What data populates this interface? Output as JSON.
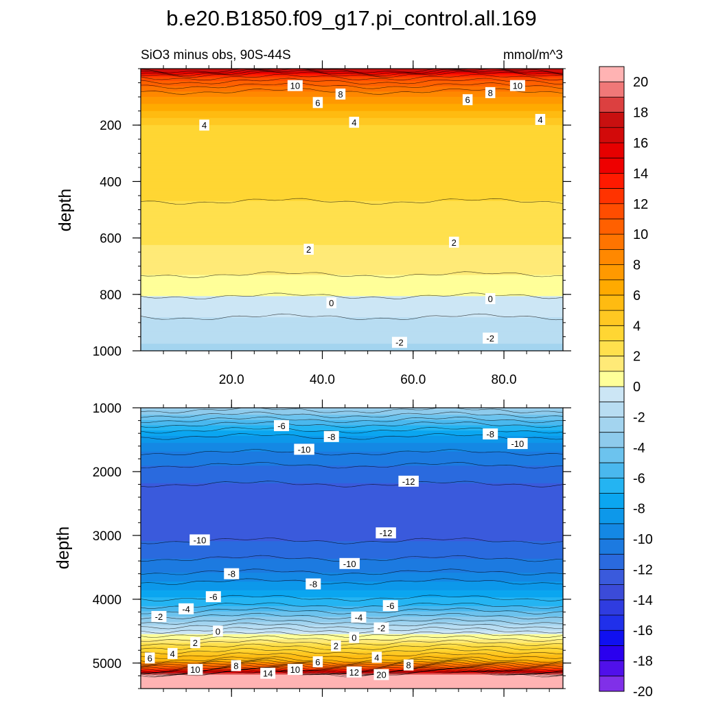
{
  "chart_data": {
    "type": "contour",
    "title": "b.e20.B1850.f09_g17.pi_control.all.169",
    "subtitle_left": "SiO3 minus obs, 90S-44S",
    "subtitle_right": "mmol/m^3",
    "ylabel": "depth",
    "x": {
      "tick_labels": [
        "20.0",
        "40.0",
        "60.0",
        "80.0"
      ],
      "tick_values": [
        20,
        40,
        60,
        80
      ],
      "range": [
        0,
        93
      ]
    },
    "panels": [
      {
        "name": "upper",
        "ylim": [
          0,
          1000
        ],
        "y_tick_labels": [
          "200",
          "400",
          "600",
          "800",
          "1000"
        ],
        "y_tick_values": [
          200,
          400,
          600,
          800,
          1000
        ],
        "field_profile": [
          [
            0,
            18
          ],
          [
            30,
            12
          ],
          [
            60,
            10
          ],
          [
            100,
            8
          ],
          [
            150,
            6
          ],
          [
            200,
            4
          ],
          [
            250,
            3.6
          ],
          [
            350,
            3.4
          ],
          [
            450,
            3.1
          ],
          [
            550,
            2.6
          ],
          [
            650,
            1.8
          ],
          [
            750,
            0.8
          ],
          [
            820,
            -0.2
          ],
          [
            880,
            -1.0
          ],
          [
            950,
            -1.8
          ],
          [
            1000,
            -2.2
          ]
        ],
        "contour_labels": [
          {
            "text": "10",
            "x": 34,
            "y": 60
          },
          {
            "text": "8",
            "x": 44,
            "y": 90
          },
          {
            "text": "6",
            "x": 39,
            "y": 120
          },
          {
            "text": "8",
            "x": 77,
            "y": 85
          },
          {
            "text": "10",
            "x": 83,
            "y": 60
          },
          {
            "text": "6",
            "x": 72,
            "y": 110
          },
          {
            "text": "4",
            "x": 14,
            "y": 200
          },
          {
            "text": "4",
            "x": 47,
            "y": 190
          },
          {
            "text": "4",
            "x": 88,
            "y": 180
          },
          {
            "text": "2",
            "x": 37,
            "y": 640
          },
          {
            "text": "2",
            "x": 69,
            "y": 615
          },
          {
            "text": "0",
            "x": 42,
            "y": 830
          },
          {
            "text": "0",
            "x": 77,
            "y": 815
          },
          {
            "text": "-2",
            "x": 57,
            "y": 970
          },
          {
            "text": "-2",
            "x": 77,
            "y": 955
          }
        ]
      },
      {
        "name": "lower",
        "ylim": [
          1000,
          5400
        ],
        "y_tick_labels": [
          "1000",
          "2000",
          "3000",
          "4000",
          "5000"
        ],
        "y_tick_values": [
          1000,
          2000,
          3000,
          4000,
          5000
        ],
        "field_profile": [
          [
            1000,
            -2.5
          ],
          [
            1300,
            -6.5
          ],
          [
            1600,
            -9.5
          ],
          [
            2000,
            -11.5
          ],
          [
            2500,
            -12.8
          ],
          [
            3000,
            -12.3
          ],
          [
            3500,
            -10.5
          ],
          [
            3800,
            -8.5
          ],
          [
            4100,
            -6
          ],
          [
            4350,
            -3
          ],
          [
            4550,
            0
          ],
          [
            4750,
            3
          ],
          [
            4950,
            6
          ],
          [
            5100,
            12
          ],
          [
            5180,
            20
          ],
          [
            5400,
            21
          ]
        ],
        "contour_labels": [
          {
            "text": "-6",
            "x": 31,
            "y": 1280
          },
          {
            "text": "-8",
            "x": 42,
            "y": 1450
          },
          {
            "text": "-10",
            "x": 36,
            "y": 1650
          },
          {
            "text": "-8",
            "x": 77,
            "y": 1410
          },
          {
            "text": "-10",
            "x": 83,
            "y": 1560
          },
          {
            "text": "-12",
            "x": 59,
            "y": 2150
          },
          {
            "text": "-10",
            "x": 13,
            "y": 3070
          },
          {
            "text": "-12",
            "x": 54,
            "y": 2960
          },
          {
            "text": "-8",
            "x": 20,
            "y": 3600
          },
          {
            "text": "-10",
            "x": 46,
            "y": 3440
          },
          {
            "text": "-8",
            "x": 38,
            "y": 3760
          },
          {
            "text": "-6",
            "x": 16,
            "y": 3960
          },
          {
            "text": "-4",
            "x": 10,
            "y": 4150
          },
          {
            "text": "-2",
            "x": 4,
            "y": 4270
          },
          {
            "text": "-6",
            "x": 55,
            "y": 4100
          },
          {
            "text": "-4",
            "x": 48,
            "y": 4280
          },
          {
            "text": "-2",
            "x": 53,
            "y": 4450
          },
          {
            "text": "0",
            "x": 17,
            "y": 4500
          },
          {
            "text": "0",
            "x": 47,
            "y": 4600
          },
          {
            "text": "2",
            "x": 12,
            "y": 4680
          },
          {
            "text": "2",
            "x": 43,
            "y": 4730
          },
          {
            "text": "4",
            "x": 7,
            "y": 4850
          },
          {
            "text": "4",
            "x": 52,
            "y": 4910
          },
          {
            "text": "6",
            "x": 2,
            "y": 4920
          },
          {
            "text": "6",
            "x": 39,
            "y": 4980
          },
          {
            "text": "8",
            "x": 21,
            "y": 5040
          },
          {
            "text": "8",
            "x": 59,
            "y": 5030
          },
          {
            "text": "10",
            "x": 12,
            "y": 5100
          },
          {
            "text": "10",
            "x": 34,
            "y": 5100
          },
          {
            "text": "12",
            "x": 47,
            "y": 5140
          },
          {
            "text": "14",
            "x": 28,
            "y": 5160
          },
          {
            "text": "20",
            "x": 53,
            "y": 5180
          }
        ]
      }
    ],
    "colorbar": {
      "tick_labels": [
        "20",
        "18",
        "16",
        "14",
        "12",
        "10",
        "8",
        "6",
        "4",
        "2",
        "0",
        "-2",
        "-4",
        "-6",
        "-8",
        "-10",
        "-12",
        "-14",
        "-16",
        "-18",
        "-20"
      ],
      "levels": [
        20,
        19,
        18,
        17,
        16,
        15,
        14,
        13,
        12,
        11,
        10,
        9,
        8,
        7,
        6,
        5,
        4,
        3,
        2,
        1,
        0,
        -1,
        -2,
        -3,
        -4,
        -5,
        -6,
        -7,
        -8,
        -9,
        -10,
        -11,
        -12,
        -13,
        -14,
        -15,
        -16,
        -17,
        -18,
        -19,
        -20
      ],
      "colors": [
        "#ffb3b3",
        "#f07878",
        "#dc4040",
        "#c81010",
        "#d20a0a",
        "#e60000",
        "#ee0000",
        "#ff1a00",
        "#ff3300",
        "#ff4d00",
        "#ff6000",
        "#ff7400",
        "#ff8800",
        "#ff9900",
        "#ffaa00",
        "#ffbb11",
        "#ffc822",
        "#ffd633",
        "#ffe04d",
        "#ffea77",
        "#ffff99",
        "#cce6f5",
        "#b8ddf2",
        "#a3d4ef",
        "#8ecbec",
        "#6cc3ee",
        "#4ab8ee",
        "#24b4f2",
        "#0ba6f0",
        "#0d98ea",
        "#1488e4",
        "#1c7ae0",
        "#2a6ade",
        "#3a5adc",
        "#3b4bd8",
        "#2f3ce0",
        "#2030ea",
        "#1010f0",
        "#2a00ee",
        "#5010ea",
        "#8030e8"
      ]
    }
  }
}
